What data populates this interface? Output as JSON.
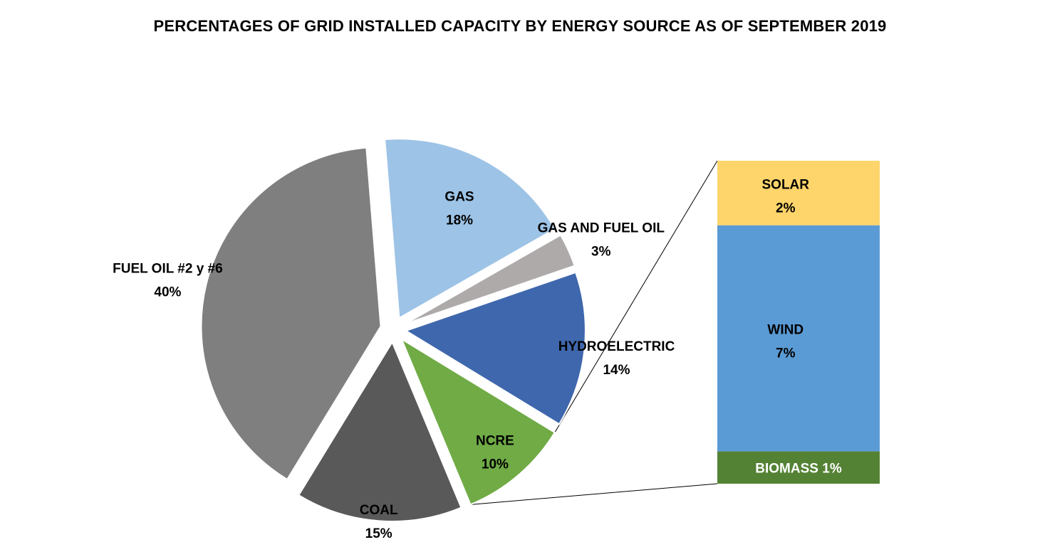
{
  "chart_data": {
    "type": "pie",
    "title": "PERCENTAGES OF GRID INSTALLED CAPACITY BY ENERGY SOURCE AS OF SEPTEMBER 2019",
    "slices": [
      {
        "name": "HYDROELECTRIC",
        "value": 14,
        "value_label": "14%",
        "color": "#3f67ad"
      },
      {
        "name": "NCRE",
        "value": 10,
        "value_label": "10%",
        "color": "#70ab46"
      },
      {
        "name": "COAL",
        "value": 15,
        "value_label": "15%",
        "color": "#595959"
      },
      {
        "name": "FUEL OIL #2 y #6",
        "value": 40,
        "value_label": "40%",
        "color": "#7f7f7f"
      },
      {
        "name": "GAS",
        "value": 18,
        "value_label": "18%",
        "color": "#9dc3e6"
      },
      {
        "name": "GAS AND FUEL OIL",
        "value": 3,
        "value_label": "3%",
        "color": "#aeaaaa"
      }
    ],
    "breakdown": {
      "of": "NCRE",
      "type": "stacked-bar",
      "segments": [
        {
          "name": "SOLAR",
          "value": 2,
          "value_label": "2%",
          "color": "#fdd56b"
        },
        {
          "name": "WIND",
          "value": 7,
          "value_label": "7%",
          "color": "#5b9bd5"
        },
        {
          "name": "BIOMASS",
          "value": 1,
          "value_label": "1%",
          "color": "#548235"
        }
      ]
    }
  }
}
